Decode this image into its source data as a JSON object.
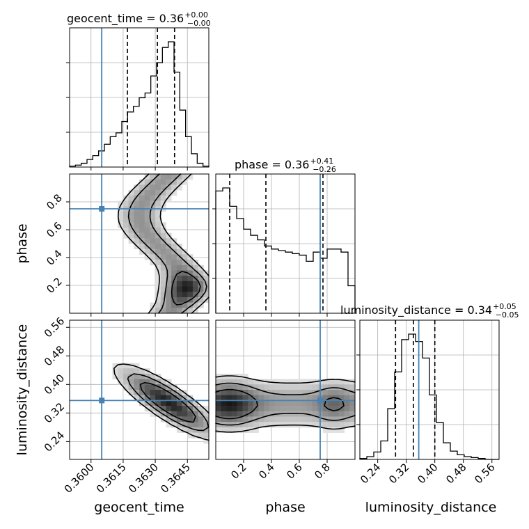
{
  "chart_data": {
    "type": "corner",
    "parameters": [
      "geocent_time",
      "phase",
      "luminosity_distance"
    ],
    "truths": {
      "geocent_time": 0.3605,
      "phase": 0.75,
      "luminosity_distance": 0.355
    },
    "titles": [
      {
        "name": "geocent_time = 0.36",
        "plus": "+0.00",
        "minus": "−0.00"
      },
      {
        "name": "phase = 0.36",
        "plus": "+0.41",
        "minus": "−0.26"
      },
      {
        "name": "luminosity_distance = 0.34",
        "plus": "+0.05",
        "minus": "−0.05"
      }
    ],
    "axes": {
      "geocent_time": {
        "range": [
          0.359,
          0.3655
        ],
        "ticks": [
          0.36,
          0.3615,
          0.363,
          0.3645
        ],
        "tick_labels": [
          "0.3600",
          "0.3615",
          "0.3630",
          "0.3645"
        ],
        "label": "geocent_time"
      },
      "phase": {
        "range": [
          0.0,
          1.0
        ],
        "ticks": [
          0.2,
          0.4,
          0.6,
          0.8
        ],
        "tick_labels": [
          "0.2",
          "0.4",
          "0.6",
          "0.8"
        ],
        "label": "phase"
      },
      "luminosity_distance": {
        "range": [
          0.19,
          0.58
        ],
        "ticks": [
          0.24,
          0.32,
          0.4,
          0.48,
          0.56
        ],
        "tick_labels": [
          "0.24",
          "0.32",
          "0.40",
          "0.48",
          "0.56"
        ],
        "label": "luminosity_distance"
      }
    },
    "histograms": {
      "geocent_time": {
        "quantiles": [
          0.3617,
          0.3631,
          0.3639
        ],
        "counts": [
          1,
          2,
          4,
          8,
          12,
          17,
          24,
          32,
          36,
          48,
          58,
          64,
          73,
          78,
          96,
          110,
          126,
          132,
          100,
          60,
          32,
          14,
          4,
          1
        ]
      },
      "phase": {
        "quantiles": [
          0.1,
          0.36,
          0.77
        ],
        "counts": [
          80,
          82,
          70,
          62,
          55,
          51,
          48,
          44,
          42,
          41,
          40,
          39,
          38,
          34,
          40,
          36,
          42,
          42,
          40,
          18
        ]
      },
      "luminosity_distance": {
        "quantiles": [
          0.29,
          0.34,
          0.4
        ],
        "counts": [
          1,
          3,
          8,
          20,
          55,
          95,
          130,
          136,
          128,
          110,
          70,
          40,
          18,
          9,
          5,
          3,
          2,
          1,
          0,
          0
        ]
      }
    },
    "grid": true,
    "truth_color": "#4682b4"
  }
}
